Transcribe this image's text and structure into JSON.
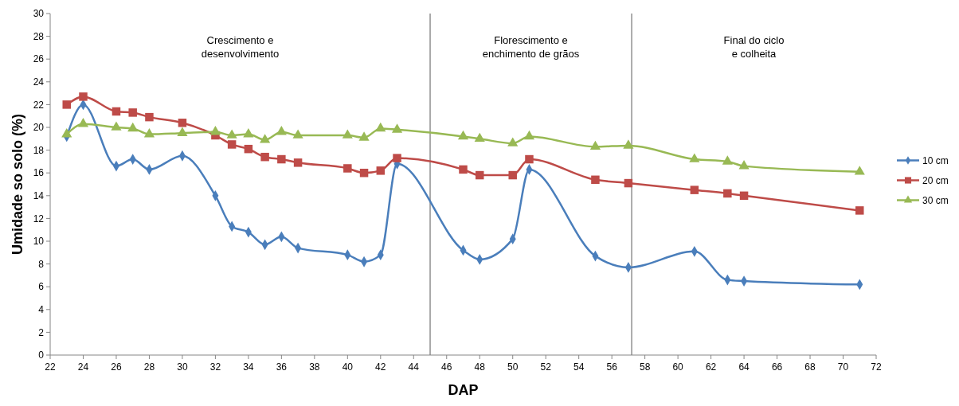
{
  "chart_data": {
    "type": "line",
    "xlabel": "DAP",
    "ylabel": "Umidade so solo (%)",
    "x": [
      23,
      24,
      26,
      27,
      28,
      30,
      32,
      33,
      34,
      35,
      36,
      37,
      40,
      41,
      42,
      43,
      47,
      48,
      50,
      51,
      55,
      57,
      61,
      63,
      64,
      71
    ],
    "series": [
      {
        "name": "10 cm",
        "color": "#4a7ebb",
        "marker": "diamond",
        "values": [
          19.2,
          22.0,
          16.6,
          17.2,
          16.3,
          17.5,
          14.0,
          11.3,
          10.8,
          9.7,
          10.4,
          9.4,
          8.8,
          8.2,
          8.8,
          16.8,
          9.2,
          8.4,
          10.2,
          16.3,
          8.7,
          7.7,
          9.1,
          6.6,
          6.5,
          6.2
        ]
      },
      {
        "name": "20 cm",
        "color": "#be4b48",
        "marker": "square",
        "values": [
          22.0,
          22.7,
          21.4,
          21.3,
          20.9,
          20.4,
          19.3,
          18.5,
          18.1,
          17.4,
          17.2,
          16.9,
          16.4,
          16.0,
          16.2,
          17.3,
          16.3,
          15.8,
          15.8,
          17.2,
          15.4,
          15.1,
          14.5,
          14.2,
          14.0,
          12.7
        ]
      },
      {
        "name": "30 cm",
        "color": "#98b954",
        "marker": "triangle",
        "values": [
          19.4,
          20.3,
          20.0,
          19.9,
          19.4,
          19.5,
          19.6,
          19.3,
          19.4,
          18.9,
          19.6,
          19.3,
          19.3,
          19.1,
          19.9,
          19.8,
          19.2,
          19.0,
          18.6,
          19.2,
          18.3,
          18.4,
          17.2,
          17.0,
          16.6,
          16.1
        ]
      }
    ],
    "xlim": [
      22,
      72
    ],
    "xticks": [
      22,
      24,
      26,
      28,
      30,
      32,
      34,
      36,
      38,
      40,
      42,
      44,
      46,
      48,
      50,
      52,
      54,
      56,
      58,
      60,
      62,
      64,
      66,
      68,
      70,
      72
    ],
    "ylim": [
      0,
      30
    ],
    "yticks": [
      0,
      2,
      4,
      6,
      8,
      10,
      12,
      14,
      16,
      18,
      20,
      22,
      24,
      26,
      28,
      30
    ],
    "ref_lines": [
      {
        "axis": "x",
        "value": 45,
        "color": "#7f7f7f"
      },
      {
        "axis": "x",
        "value": 57.2,
        "color": "#7f7f7f"
      }
    ],
    "annotations": [
      "Crescimento e\ndesenvolvimento",
      "Florescimento e\nenchimento de grãos",
      "Final do ciclo\ne colheita"
    ],
    "grid": false,
    "legend": "right",
    "line_style": "solid"
  }
}
